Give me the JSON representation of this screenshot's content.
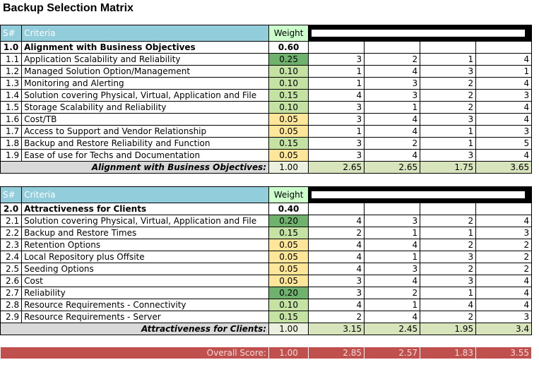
{
  "title": "Backup Selection Matrix",
  "header": {
    "sn": "S#",
    "criteria": "Criteria",
    "weight": "Weight"
  },
  "sections": [
    {
      "id": "1.0",
      "name": "Alignment with Business Objectives",
      "weight": "0.60",
      "rows": [
        {
          "id": "1.1",
          "criteria": "Application Scalability and Reliability",
          "weight": "0.25",
          "shade": "dark",
          "scores": [
            "3",
            "2",
            "1",
            "4"
          ]
        },
        {
          "id": "1.2",
          "criteria": "Managed Solution Option/Management",
          "weight": "0.10",
          "shade": "mid",
          "scores": [
            "1",
            "4",
            "3",
            "1"
          ]
        },
        {
          "id": "1.3",
          "criteria": "Monitoring and Alerting",
          "weight": "0.10",
          "shade": "mid",
          "scores": [
            "1",
            "3",
            "2",
            "4"
          ]
        },
        {
          "id": "1.4",
          "criteria": "Solution covering Physical, Virtual, Application and File",
          "weight": "0.15",
          "shade": "mid",
          "scores": [
            "4",
            "3",
            "2",
            "3"
          ]
        },
        {
          "id": "1.5",
          "criteria": "Storage Scalability and Reliability",
          "weight": "0.10",
          "shade": "mid",
          "scores": [
            "3",
            "1",
            "2",
            "4"
          ]
        },
        {
          "id": "1.6",
          "criteria": "Cost/TB",
          "weight": "0.05",
          "shade": "yel",
          "scores": [
            "3",
            "4",
            "3",
            "4"
          ]
        },
        {
          "id": "1.7",
          "criteria": "Access to Support and Vendor Relationship",
          "weight": "0.05",
          "shade": "yel",
          "scores": [
            "1",
            "4",
            "1",
            "3"
          ]
        },
        {
          "id": "1.8",
          "criteria": "Backup and Restore Reliability and Function",
          "weight": "0.15",
          "shade": "mid",
          "scores": [
            "3",
            "2",
            "1",
            "5"
          ]
        },
        {
          "id": "1.9",
          "criteria": "Ease of use for Techs and Documentation",
          "weight": "0.05",
          "shade": "yel",
          "scores": [
            "3",
            "4",
            "3",
            "4"
          ]
        }
      ],
      "summary": {
        "label": "Alignment with Business Objectives:",
        "weight": "1.00",
        "scores": [
          "2.65",
          "2.65",
          "1.75",
          "3.65"
        ]
      }
    },
    {
      "id": "2.0",
      "name": "Attractiveness for Clients",
      "weight": "0.40",
      "rows": [
        {
          "id": "2.1",
          "criteria": "Solution covering Physical, Virtual, Application and File",
          "weight": "0.20",
          "shade": "dark",
          "scores": [
            "4",
            "3",
            "2",
            "4"
          ]
        },
        {
          "id": "2.2",
          "criteria": "Backup and Restore Times",
          "weight": "0.15",
          "shade": "mid",
          "scores": [
            "2",
            "1",
            "1",
            "3"
          ]
        },
        {
          "id": "2.3",
          "criteria": "Retention Options",
          "weight": "0.05",
          "shade": "yel",
          "scores": [
            "4",
            "4",
            "2",
            "2"
          ]
        },
        {
          "id": "2.4",
          "criteria": "Local Repository plus Offsite",
          "weight": "0.05",
          "shade": "yel",
          "scores": [
            "4",
            "1",
            "3",
            "2"
          ]
        },
        {
          "id": "2.5",
          "criteria": "Seeding Options",
          "weight": "0.05",
          "shade": "yel",
          "scores": [
            "4",
            "3",
            "2",
            "2"
          ]
        },
        {
          "id": "2.6",
          "criteria": "Cost",
          "weight": "0.05",
          "shade": "yel",
          "scores": [
            "3",
            "4",
            "3",
            "4"
          ]
        },
        {
          "id": "2.7",
          "criteria": "Reliability",
          "weight": "0.20",
          "shade": "dark",
          "scores": [
            "3",
            "2",
            "1",
            "4"
          ]
        },
        {
          "id": "2.8",
          "criteria": "Resource Requirements - Connectivity",
          "weight": "0.10",
          "shade": "mid",
          "scores": [
            "4",
            "1",
            "4",
            "4"
          ]
        },
        {
          "id": "2.9",
          "criteria": "Resource Requirements - Server",
          "weight": "0.15",
          "shade": "mid",
          "scores": [
            "2",
            "4",
            "2",
            "3"
          ]
        }
      ],
      "summary": {
        "label": "Attractiveness for Clients:",
        "weight": "1.00",
        "scores": [
          "3.15",
          "2.45",
          "1.95",
          "3.4"
        ]
      }
    }
  ],
  "overall": {
    "label": "Overall Score:",
    "weight": "1.00",
    "scores": [
      "2.85",
      "2.57",
      "1.83",
      "3.55"
    ]
  },
  "colors": {
    "header_bg": "#92cddc",
    "weight_header_bg": "#ccffcc",
    "weight_dark": "#6eb26e",
    "weight_mid": "#c4e3a2",
    "weight_yellow": "#ffe699",
    "summary_bg": "#d9d9d9",
    "summary_score_bg": "#d8e4bc",
    "overall_bg": "#c0504d"
  }
}
